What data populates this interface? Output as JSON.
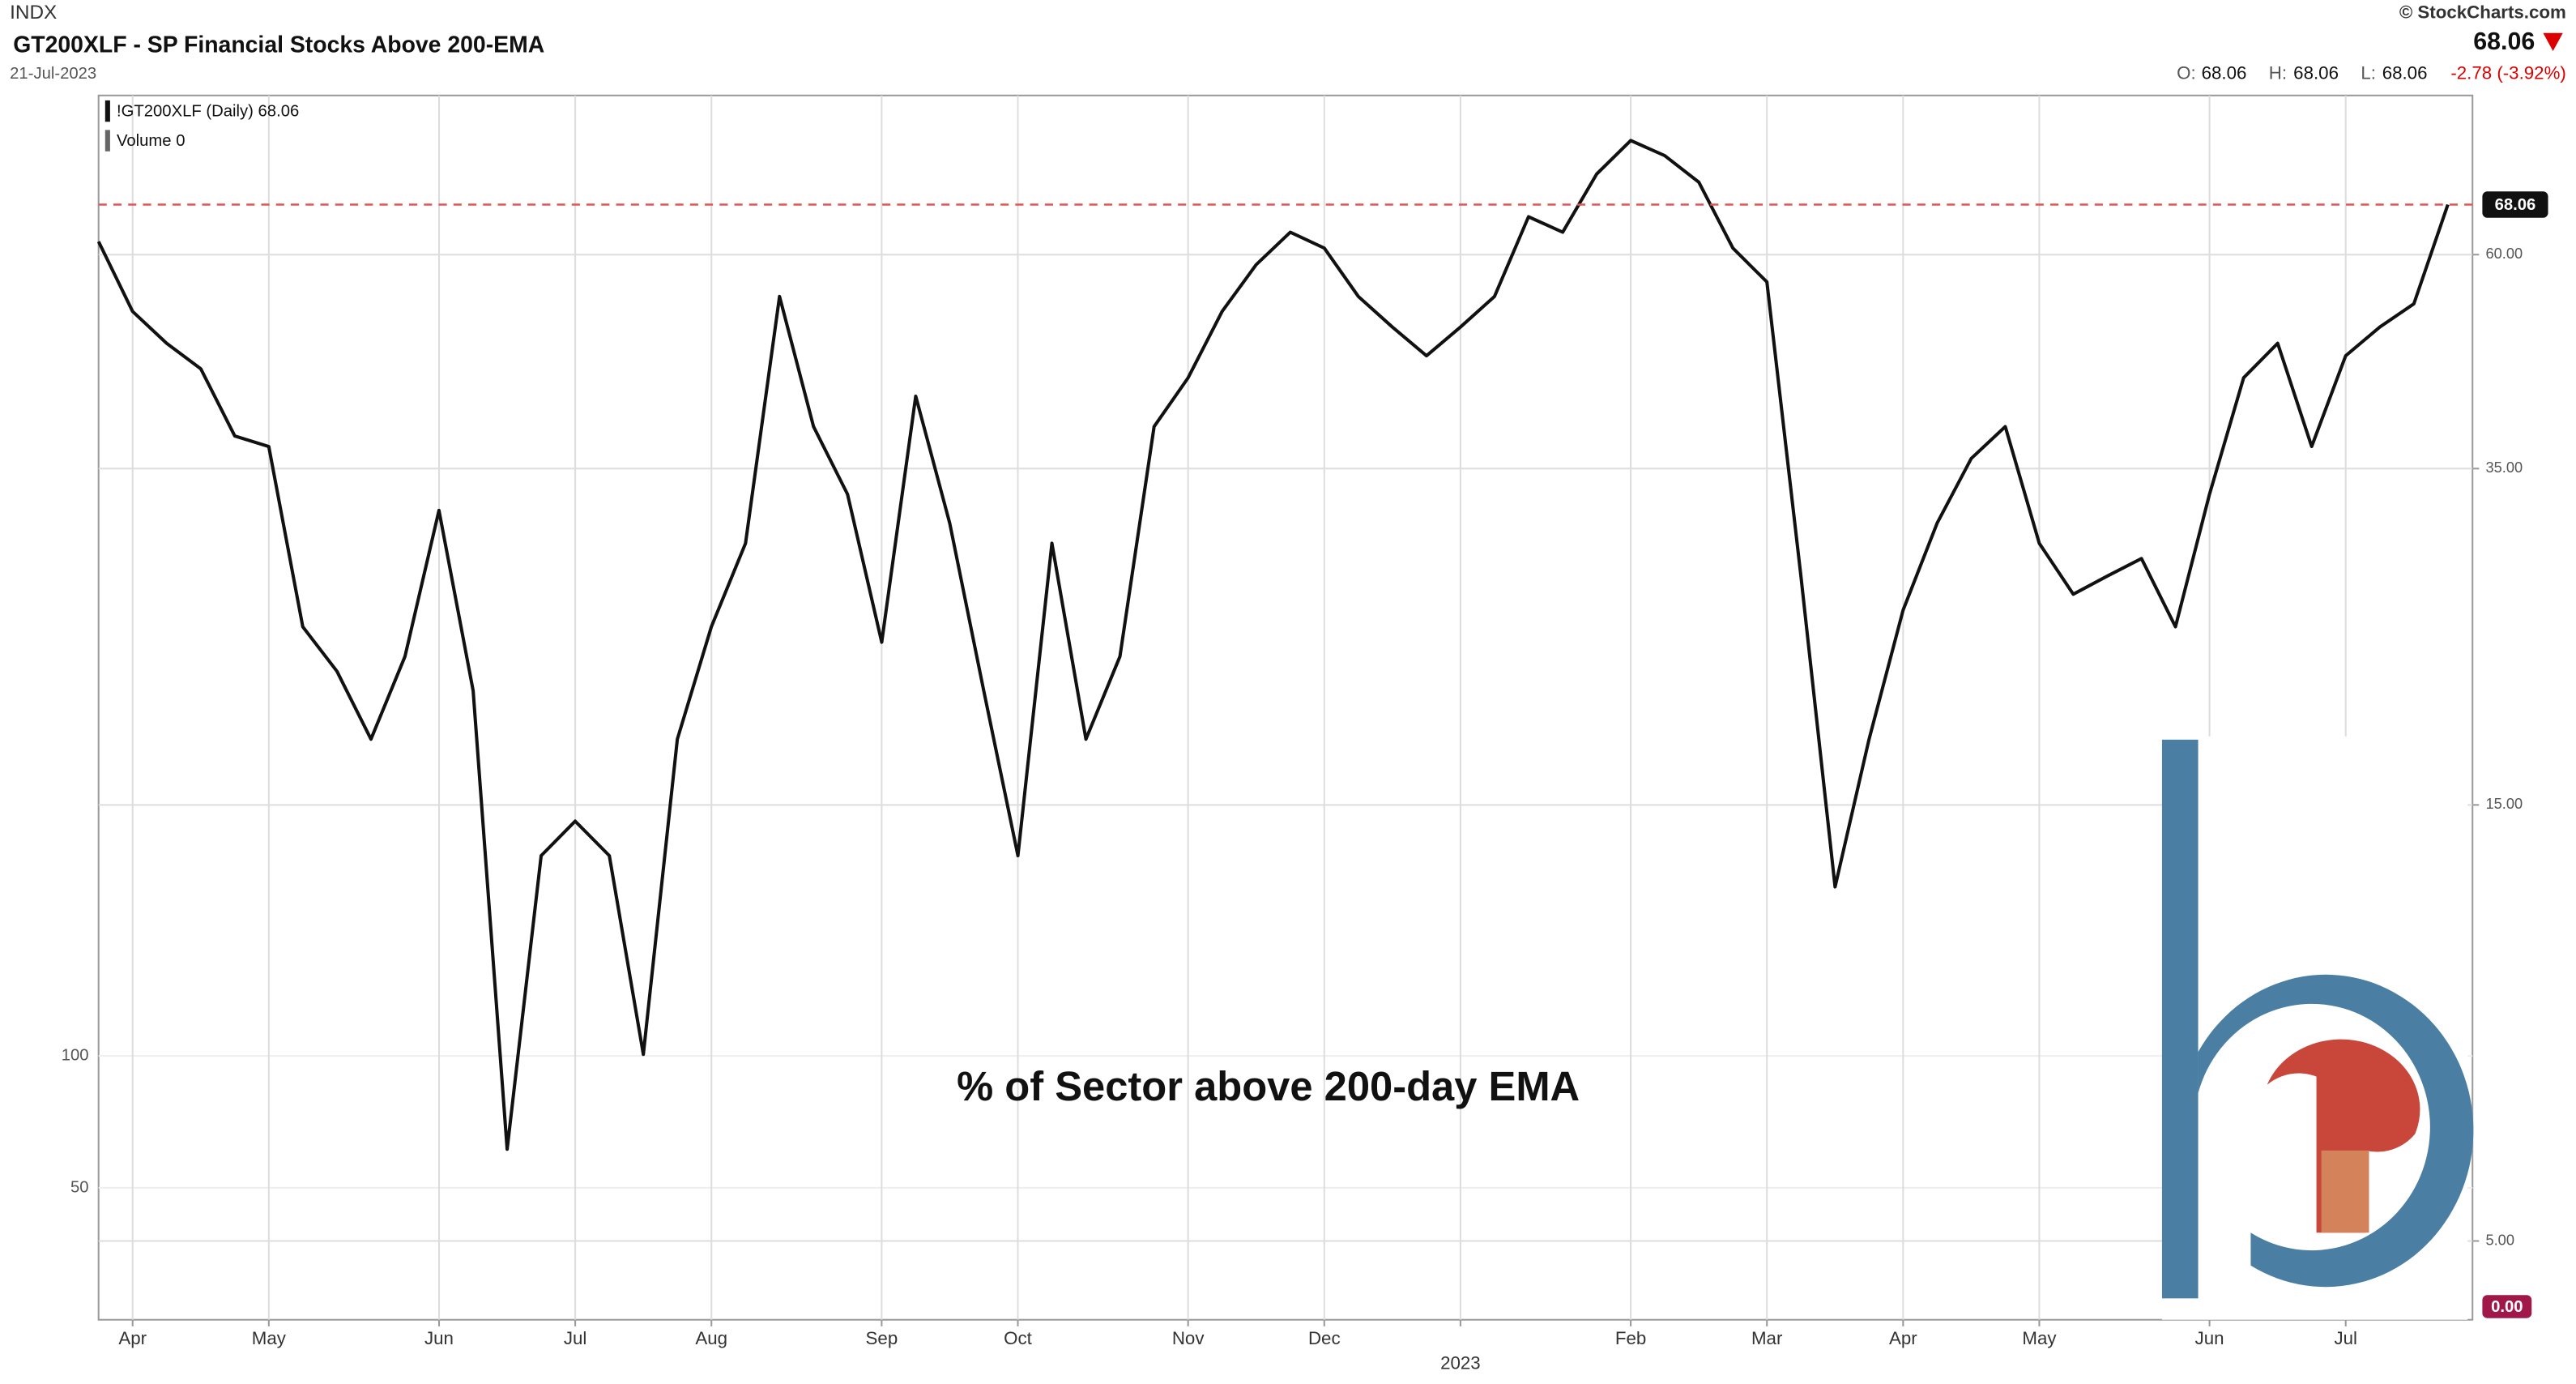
{
  "header": {
    "exchange": "INDX",
    "title": "GT200XLF - SP Financial Stocks Above 200-EMA",
    "date": "21-Jul-2023",
    "brand": "© StockCharts.com",
    "last": "68.06",
    "open_label": "O:",
    "open": 68.06,
    "high_label": "H:",
    "high": 68.06,
    "low_label": "L:",
    "low": 68.06,
    "change": "-2.78 (-3.92%)"
  },
  "chart_data": {
    "type": "line",
    "log_scale": true,
    "grid": true,
    "legend": [
      "!GT200XLF (Daily) 68.06",
      "Volume 0"
    ],
    "annotation": "% of Sector above 200-day EMA",
    "categories": [
      null,
      "Apr",
      null,
      null,
      null,
      "May",
      null,
      null,
      null,
      null,
      "Jun",
      null,
      null,
      null,
      "Jul",
      null,
      null,
      null,
      "Aug",
      null,
      null,
      null,
      null,
      "Sep",
      null,
      null,
      null,
      "Oct",
      null,
      null,
      null,
      null,
      "Nov",
      null,
      null,
      null,
      "Dec",
      null,
      null,
      null,
      "2023",
      null,
      null,
      null,
      null,
      "Feb",
      null,
      null,
      null,
      "Mar",
      null,
      null,
      null,
      "Apr",
      null,
      null,
      null,
      "May",
      null,
      null,
      null,
      null,
      "Jun",
      null,
      null,
      null,
      "Jul",
      null,
      null,
      null
    ],
    "series": [
      {
        "name": "!GT200XLF",
        "color": "#111111",
        "values": [
          62,
          52,
          48,
          45,
          38,
          37,
          23.5,
          21,
          17.7,
          21.8,
          31.5,
          20,
          6.3,
          13.2,
          14.4,
          13.2,
          8,
          17.7,
          23.5,
          29,
          54,
          38.9,
          32.8,
          22.6,
          42,
          30.5,
          20,
          13.2,
          29,
          17.7,
          21.8,
          38.9,
          44,
          52,
          58.5,
          63.5,
          61,
          54,
          50,
          46.5,
          50,
          54,
          66,
          63.5,
          73.5,
          80,
          77,
          72,
          61,
          56,
          26.7,
          12.2,
          17.7,
          24.5,
          30.5,
          35.9,
          38.9,
          29,
          25.5,
          26.7,
          27.9,
          23.5,
          32.8,
          44,
          48,
          37,
          46.5,
          50,
          53,
          68.06
        ]
      }
    ],
    "reference_line": 68.06,
    "ylim": [
      4.1,
      89.6
    ],
    "yticks": [
      {
        "value": 5,
        "label": "5.00"
      },
      {
        "value": 15,
        "label": "15.00"
      },
      {
        "value": 35,
        "label": "35.00"
      },
      {
        "value": 60,
        "label": "60.00"
      }
    ],
    "volume_ylim": [
      0,
      464
    ],
    "volume_ticks": [
      50,
      100
    ],
    "volume_badge": "0.00"
  }
}
